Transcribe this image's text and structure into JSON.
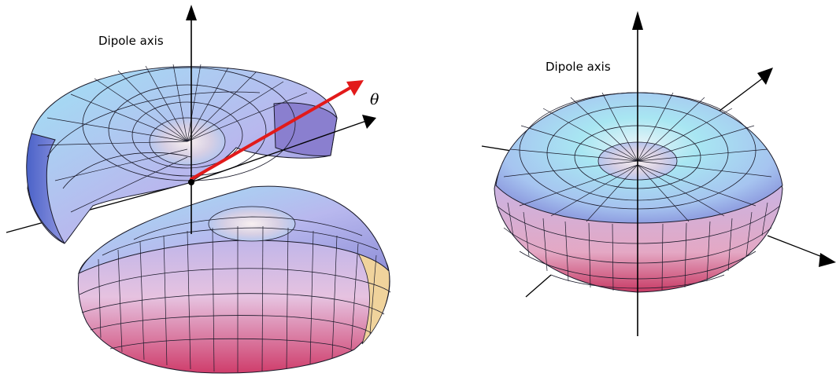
{
  "left_panel": {
    "axis_label": "Dipole axis",
    "angle_symbol": "θ",
    "arrow_color": "#e21a1a"
  },
  "right_panel": {
    "axis_label": "Dipole axis"
  },
  "colors": {
    "surface_top": "#aee6f5",
    "surface_mid": "#b9b6ee",
    "surface_low": "#e7c6dc",
    "surface_bottom": "#d23a6a",
    "edge_warm": "#f0d8a0",
    "mesh_line": "#1a1a2a"
  }
}
